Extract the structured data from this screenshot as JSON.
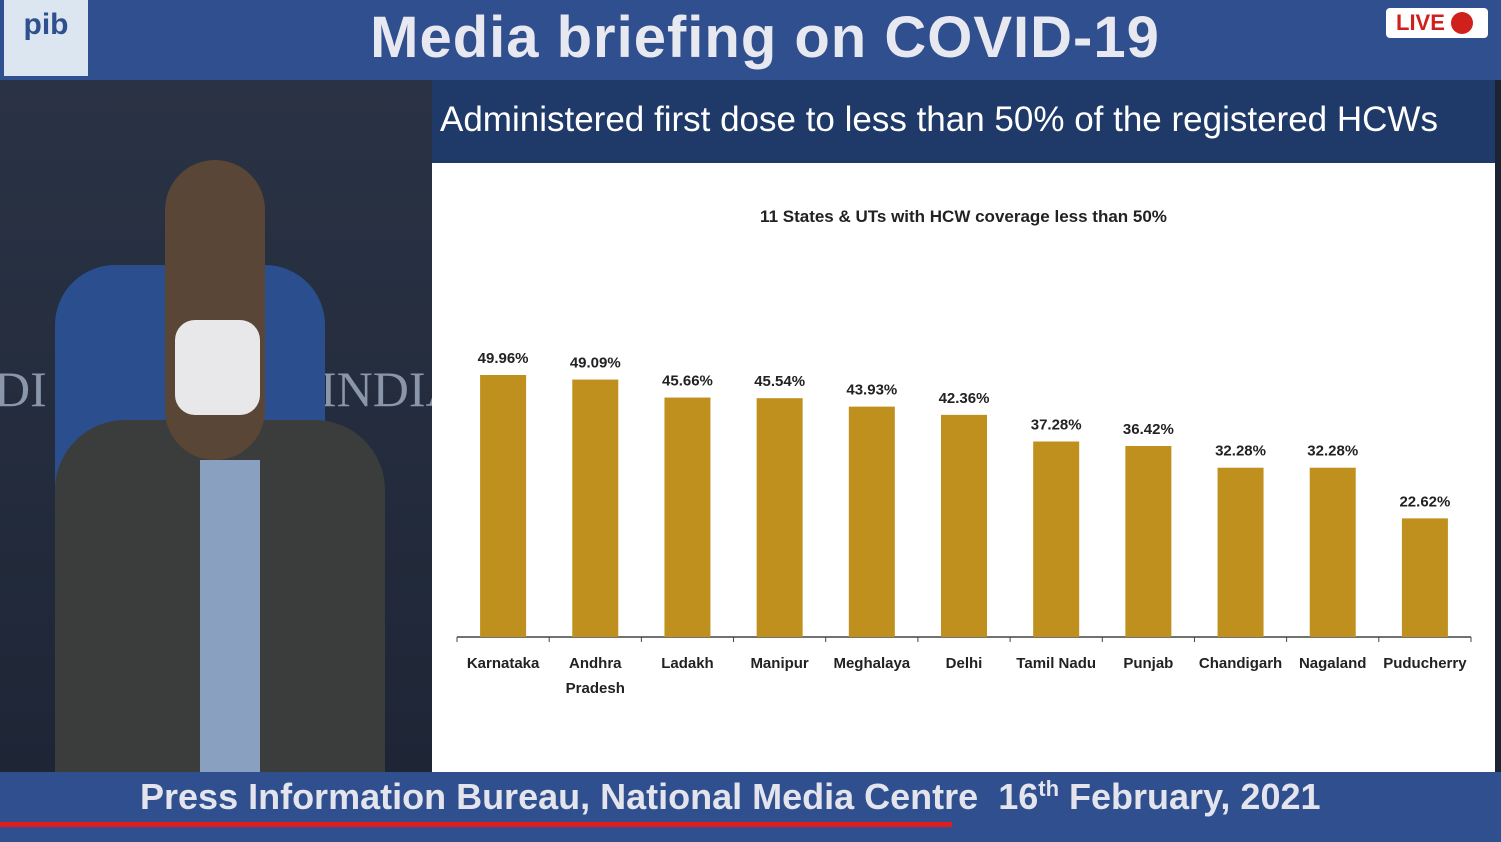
{
  "logo": "pib",
  "header": {
    "title": "Media briefing on COVID-19",
    "live": "LIVE"
  },
  "backdrop": {
    "left": "DI",
    "right": "INDIA"
  },
  "slide_title": "Administered first dose to less than 50% of the registered HCWs",
  "footer": {
    "text": "Press Information Bureau, National Media Centre",
    "day": "16",
    "suffix": "th",
    "date": "February, 2021"
  },
  "chart_data": {
    "type": "bar",
    "title": "11 States & UTs with HCW coverage less than 50%",
    "categories": [
      "Karnataka",
      "Andhra Pradesh",
      "Ladakh",
      "Manipur",
      "Meghalaya",
      "Delhi",
      "Tamil Nadu",
      "Punjab",
      "Chandigarh",
      "Nagaland",
      "Puducherry"
    ],
    "values": [
      49.96,
      49.09,
      45.66,
      45.54,
      43.93,
      42.36,
      37.28,
      36.42,
      32.28,
      32.28,
      22.62
    ],
    "value_labels": [
      "49.96%",
      "49.09%",
      "45.66%",
      "45.54%",
      "43.93%",
      "42.36%",
      "37.28%",
      "36.42%",
      "32.28%",
      "32.28%",
      "22.62%"
    ],
    "color": "#c0901e"
  }
}
